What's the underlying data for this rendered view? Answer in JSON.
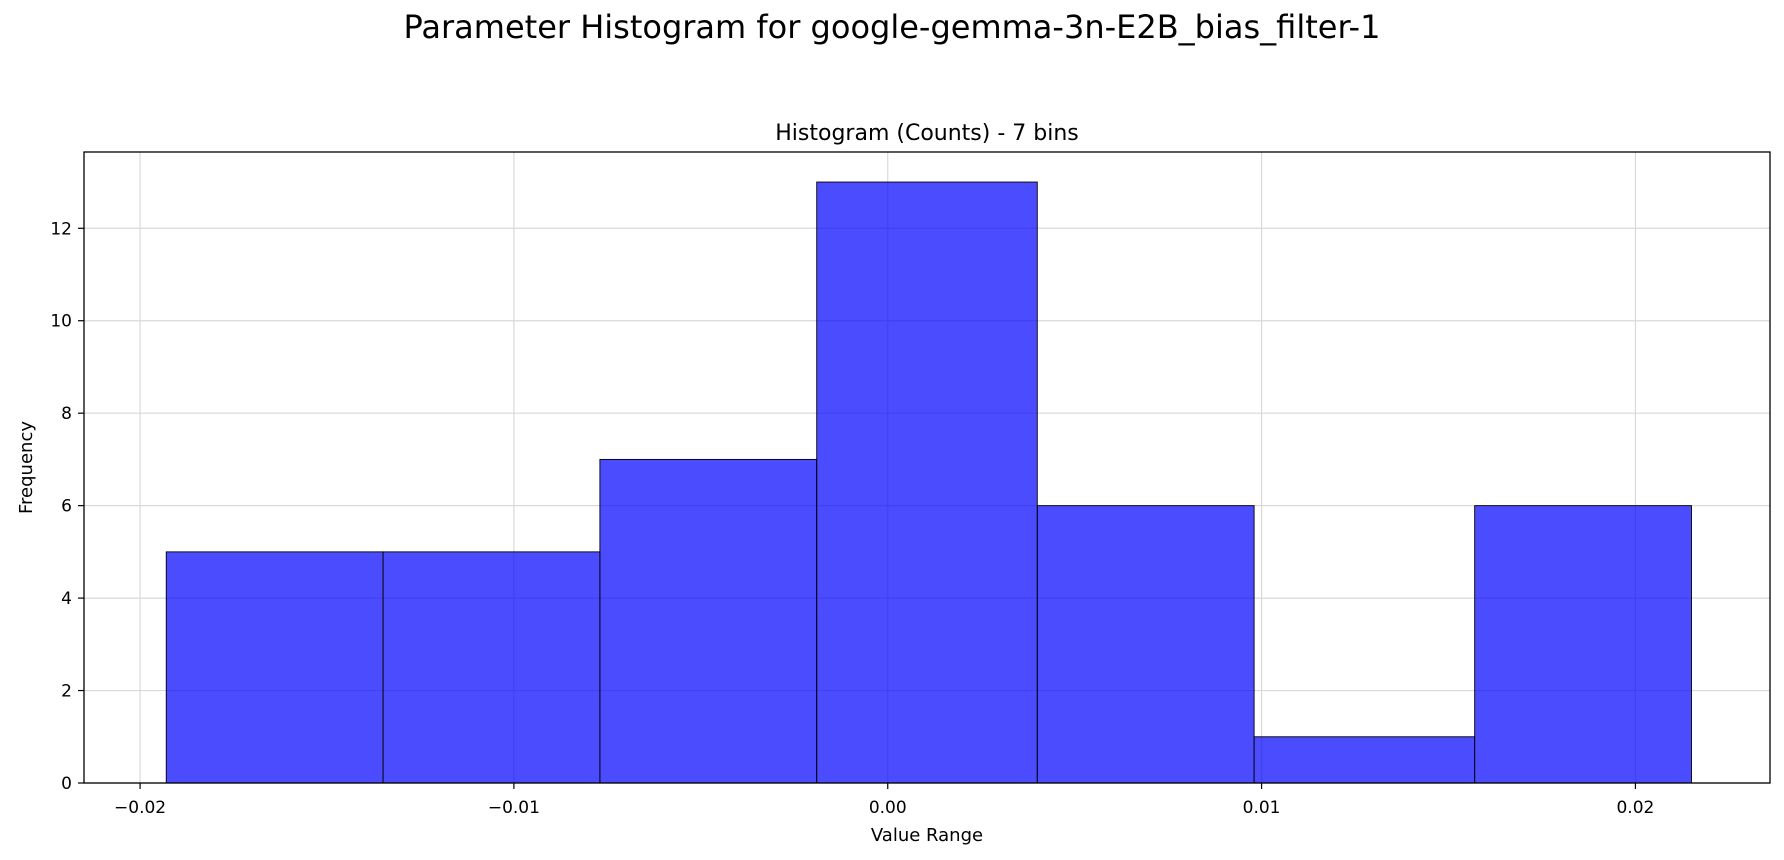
{
  "figure": {
    "suptitle": "Parameter Histogram for google-gemma-3n-E2B_bias_filter-1"
  },
  "chart_data": {
    "type": "bar",
    "title": "Histogram (Counts) - 7 bins",
    "xlabel": "Value Range",
    "ylabel": "Frequency",
    "bin_edges": [
      -0.0193,
      -0.0135,
      -0.0077,
      -0.0019,
      0.004,
      0.0098,
      0.0157,
      0.0215
    ],
    "values": [
      5,
      5,
      7,
      13,
      6,
      1,
      6
    ],
    "xlim": [
      -0.0215,
      0.0236
    ],
    "ylim": [
      0,
      13.65
    ],
    "xticks": [
      -0.02,
      -0.01,
      0.0,
      0.01,
      0.02
    ],
    "xtick_labels": [
      "−0.02",
      "−0.01",
      "0.00",
      "0.01",
      "0.02"
    ],
    "yticks": [
      0,
      2,
      4,
      6,
      8,
      10,
      12
    ],
    "ytick_labels": [
      "0",
      "2",
      "4",
      "6",
      "8",
      "10",
      "12"
    ],
    "grid": true,
    "bar_color": "#0000ff",
    "bar_alpha": 0.7,
    "edge_color": "#000000",
    "grid_color": "#d9d9d9"
  }
}
